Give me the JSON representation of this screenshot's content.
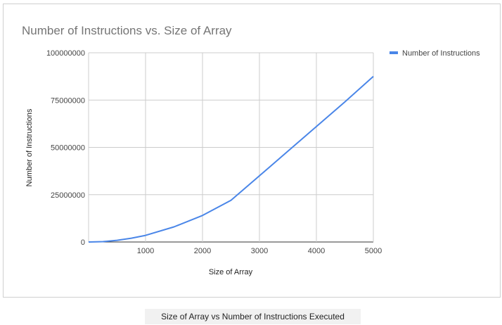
{
  "caption": "Size of Array vs Number of Instructions Executed",
  "chart_data": {
    "type": "line",
    "title": "Number of Instructions vs. Size of Array",
    "xlabel": "Size of Array",
    "ylabel": "Number of Instructions",
    "xlim": [
      0,
      5000
    ],
    "ylim": [
      0,
      100000000
    ],
    "xticks": [
      1000,
      2000,
      3000,
      4000,
      5000
    ],
    "yticks": [
      0,
      25000000,
      50000000,
      75000000,
      100000000
    ],
    "x_tick_labels": [
      "1000",
      "2000",
      "3000",
      "4000",
      "5000"
    ],
    "y_tick_labels": [
      "0",
      "25000000",
      "50000000",
      "75000000",
      "100000000"
    ],
    "grid": true,
    "legend_position": "top-right",
    "series": [
      {
        "name": "Number of Instructions",
        "color": "#4a86e8",
        "x": [
          0,
          250,
          500,
          750,
          1000,
          1500,
          2000,
          2500,
          3000,
          3500,
          4000,
          4500,
          5000
        ],
        "values": [
          0,
          200000,
          900000,
          2000000,
          3500000,
          8000000,
          14000000,
          22000000,
          35000000,
          48000000,
          61000000,
          74000000,
          87500000
        ]
      }
    ]
  }
}
